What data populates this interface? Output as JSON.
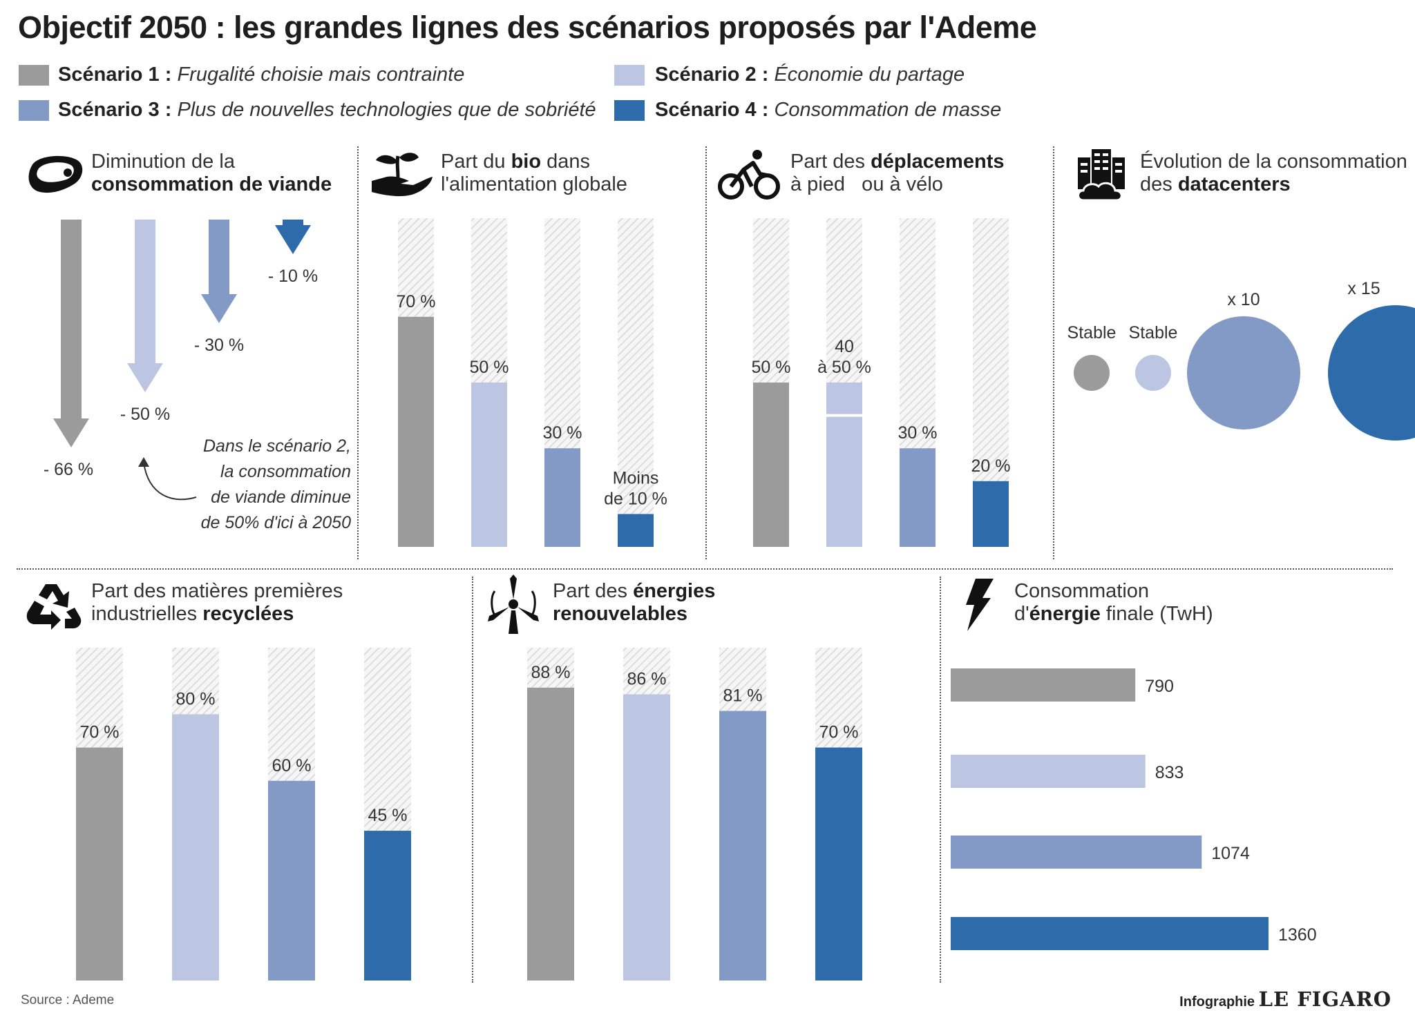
{
  "title": "Objectif 2050 : les grandes lignes des scénarios proposés par l'Ademe",
  "colors": {
    "s1": "#9b9b9b",
    "s2": "#bcc5e1",
    "s3": "#8399c6",
    "s4": "#2e6bab",
    "hatch": "#d6d6d6",
    "text": "#333333"
  },
  "legend": [
    {
      "key": "s1",
      "label": "Scénario 1 :",
      "desc": "Frugalité choisie mais contrainte"
    },
    {
      "key": "s2",
      "label": "Scénario 2 :",
      "desc": "Économie du partage"
    },
    {
      "key": "s3",
      "label": "Scénario 3 :",
      "desc": "Plus de nouvelles technologies que de sobriété"
    },
    {
      "key": "s4",
      "label": "Scénario 4 :",
      "desc": "Consommation de masse"
    }
  ],
  "panels": {
    "viande": {
      "icon": "steak-icon",
      "title_plain": "Diminution de la",
      "title_bold": "consommation de viande"
    },
    "bio": {
      "icon": "plant-hand-icon",
      "t1_plain": "Part du ",
      "t1_bold": "bio",
      "t1_plain2": " dans",
      "t2": "l'alimentation globale"
    },
    "deplacements": {
      "icon": "bicycle-icon",
      "t1_plain": "Part des ",
      "t1_bold": "déplacements",
      "t2": "à pied   ou à vélo"
    },
    "datacenters": {
      "icon": "datacenter-icon",
      "t1": "Évolution de la consommation",
      "t2_plain": "des ",
      "t2_bold": "datacenters"
    },
    "recyclees": {
      "icon": "recycle-icon",
      "t1": "Part des matières premières",
      "t2_plain": "industrielles ",
      "t2_bold": "recyclées"
    },
    "energies": {
      "icon": "wind-turbine-icon",
      "t1_plain": "Part des ",
      "t1_bold": "énergies",
      "t2_bold": "renouvelables"
    },
    "energie_finale": {
      "icon": "lightning-icon",
      "t1": "Consommation",
      "t2_plain": "d'",
      "t2_bold": "énergie",
      "t2_plain2": " finale (TwH)"
    }
  },
  "note": [
    "Dans le scénario 2,",
    "la consommation",
    "de viande diminue",
    "de 50% d'ici à 2050"
  ],
  "chart_data": [
    {
      "id": "viande",
      "type": "bar",
      "orientation": "arrow-down",
      "categories": [
        "Scénario 1",
        "Scénario 2",
        "Scénario 3",
        "Scénario 4"
      ],
      "values": [
        -66,
        -50,
        -30,
        -10
      ],
      "labels": [
        "- 66 %",
        "- 50 %",
        "- 30 %",
        "- 10 %"
      ]
    },
    {
      "id": "bio",
      "type": "bar",
      "categories": [
        "Scénario 1",
        "Scénario 2",
        "Scénario 3",
        "Scénario 4"
      ],
      "values": [
        70,
        50,
        30,
        10
      ],
      "labels": [
        "70 %",
        "50 %",
        "30 %",
        "Moins|de 10 %"
      ],
      "ylim": [
        0,
        100
      ]
    },
    {
      "id": "deplacements",
      "type": "bar",
      "categories": [
        "Scénario 1",
        "Scénario 2",
        "Scénario 3",
        "Scénario 4"
      ],
      "values": [
        50,
        50,
        30,
        20
      ],
      "range_low": [
        null,
        40,
        null,
        null
      ],
      "labels": [
        "50 %",
        "40|à 50 %",
        "30 %",
        "20 %"
      ],
      "ylim": [
        0,
        100
      ]
    },
    {
      "id": "datacenters",
      "type": "scatter",
      "categories": [
        "Scénario 1",
        "Scénario 2",
        "Scénario 3",
        "Scénario 4"
      ],
      "values": [
        1,
        1,
        10,
        15
      ],
      "labels": [
        "Stable",
        "Stable",
        "x 10",
        "x 15"
      ]
    },
    {
      "id": "recyclees",
      "type": "bar",
      "categories": [
        "Scénario 1",
        "Scénario 2",
        "Scénario 3",
        "Scénario 4"
      ],
      "values": [
        70,
        80,
        60,
        45
      ],
      "labels": [
        "70 %",
        "80 %",
        "60 %",
        "45 %"
      ],
      "ylim": [
        0,
        100
      ]
    },
    {
      "id": "energies",
      "type": "bar",
      "categories": [
        "Scénario 1",
        "Scénario 2",
        "Scénario 3",
        "Scénario 4"
      ],
      "values": [
        88,
        86,
        81,
        70
      ],
      "labels": [
        "88 %",
        "86 %",
        "81 %",
        "70 %"
      ],
      "ylim": [
        0,
        100
      ]
    },
    {
      "id": "energie_finale",
      "type": "bar",
      "orientation": "horizontal",
      "categories": [
        "Scénario 1",
        "Scénario 2",
        "Scénario 3",
        "Scénario 4"
      ],
      "values": [
        790,
        833,
        1074,
        1360
      ],
      "labels": [
        "790",
        "833",
        "1074",
        "1360"
      ]
    }
  ],
  "source": "Source : Ademe",
  "credit": {
    "prefix": "Infographie",
    "brand": "LE FIGARO"
  }
}
